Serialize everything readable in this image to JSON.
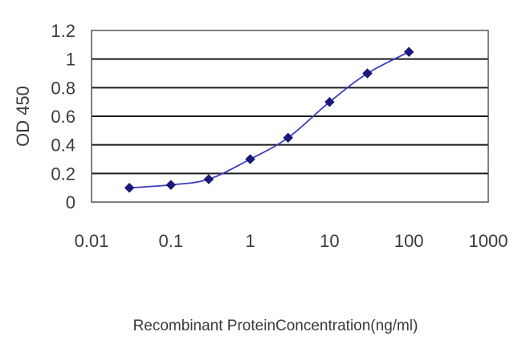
{
  "chart_data": {
    "type": "line",
    "title": "",
    "xlabel": "Recombinant ProteinConcentration(ng/ml)",
    "ylabel": "OD 450",
    "x_scale": "log",
    "xlim": [
      0.01,
      1000
    ],
    "ylim": [
      0,
      1.2
    ],
    "x_ticks": [
      "0.01",
      "0.1",
      "1",
      "10",
      "100",
      "1000"
    ],
    "y_ticks": [
      "0",
      "0.2",
      "0.4",
      "0.6",
      "0.8",
      "1",
      "1.2"
    ],
    "grid": "horizontal",
    "legend": "none",
    "series": [
      {
        "x": [
          0.03,
          0.1,
          0.3,
          1,
          3,
          10,
          30,
          100
        ],
        "y": [
          0.1,
          0.12,
          0.16,
          0.3,
          0.45,
          0.7,
          0.9,
          1.05
        ]
      }
    ],
    "colors": {
      "line": "#3b3bc4",
      "marker": "#1a1a7a",
      "grid": "#1a1a1a",
      "frame": "#555555"
    }
  }
}
